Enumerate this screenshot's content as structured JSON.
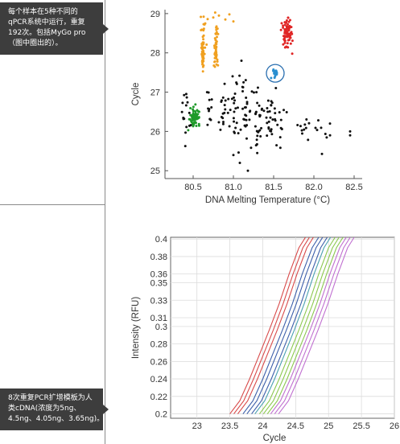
{
  "callouts": {
    "top": [
      "每个样本在5种不同的",
      "qPCR系统中运行，重复",
      "192次。包括MyGo pro",
      "（图中圈出的）。"
    ],
    "bottom": [
      "8次重复PCR扩增模板为人",
      "类cDNA(浓度为5ng、",
      "4.5ng、4.05ng、3.65ng)。"
    ]
  },
  "chart_data": [
    {
      "type": "scatter",
      "xlabel": "DNA Melting Temperature (°C)",
      "ylabel": "Cycle",
      "xlim": [
        80.15,
        82.6
      ],
      "ylim": [
        24.8,
        29.1
      ],
      "xticks": [
        "80.5",
        "81.0",
        "81.5",
        "82.0",
        "82.5"
      ],
      "yticks": [
        "25",
        "26",
        "27",
        "28",
        "29"
      ],
      "series": [
        {
          "color": "#f0a020",
          "clusters": [
            {
              "cx": 80.62,
              "cy": 28.1,
              "sx": 0.012,
              "sy": 0.28,
              "n": 55
            },
            {
              "cx": 80.78,
              "cy": 28.1,
              "sx": 0.012,
              "sy": 0.28,
              "n": 55
            }
          ],
          "points": [
            [
              80.65,
              28.75
            ],
            [
              80.68,
              28.86
            ],
            [
              80.75,
              28.9
            ],
            [
              80.82,
              28.95
            ],
            [
              80.9,
              28.85
            ],
            [
              81.0,
              28.8
            ],
            [
              80.95,
              28.98
            ],
            [
              80.63,
              28.92
            ]
          ]
        },
        {
          "color": "#e02424",
          "clusters": [
            {
              "cx": 81.67,
              "cy": 28.5,
              "sx": 0.035,
              "sy": 0.22,
              "n": 75
            }
          ],
          "points": []
        },
        {
          "color": "#1f9a2a",
          "clusters": [
            {
              "cx": 80.52,
              "cy": 26.38,
              "sx": 0.03,
              "sy": 0.1,
              "n": 65
            }
          ],
          "points": []
        },
        {
          "color": "#2a8fd0",
          "clusters": [
            {
              "cx": 81.52,
              "cy": 27.48,
              "sx": 0.012,
              "sy": 0.05,
              "n": 28
            }
          ],
          "points": []
        },
        {
          "color": "#111111",
          "clusters": [
            {
              "cx": 80.42,
              "cy": 26.55,
              "sx": 0.03,
              "sy": 0.35,
              "n": 16
            },
            {
              "cx": 80.7,
              "cy": 26.5,
              "sx": 0.03,
              "sy": 0.25,
              "n": 12
            },
            {
              "cx": 80.86,
              "cy": 26.6,
              "sx": 0.04,
              "sy": 0.35,
              "n": 16
            },
            {
              "cx": 81.02,
              "cy": 26.5,
              "sx": 0.04,
              "sy": 0.45,
              "n": 22
            },
            {
              "cx": 81.15,
              "cy": 26.4,
              "sx": 0.04,
              "sy": 0.45,
              "n": 26
            },
            {
              "cx": 81.3,
              "cy": 26.3,
              "sx": 0.04,
              "sy": 0.45,
              "n": 28
            },
            {
              "cx": 81.45,
              "cy": 26.3,
              "sx": 0.04,
              "sy": 0.45,
              "n": 22
            },
            {
              "cx": 81.58,
              "cy": 26.3,
              "sx": 0.04,
              "sy": 0.35,
              "n": 14
            },
            {
              "cx": 81.9,
              "cy": 26.0,
              "sx": 0.06,
              "sy": 0.2,
              "n": 10
            },
            {
              "cx": 82.1,
              "cy": 26.0,
              "sx": 0.05,
              "sy": 0.18,
              "n": 8
            }
          ],
          "points": [
            [
              82.45,
              26.0
            ],
            [
              82.45,
              25.9
            ],
            [
              81.08,
              25.2
            ],
            [
              81.18,
              25.0
            ],
            [
              81.0,
              25.4
            ],
            [
              81.1,
              27.8
            ],
            [
              82.2,
              26.2
            ]
          ]
        }
      ],
      "highlight_circle": {
        "x": 81.52,
        "y": 27.48,
        "color": "#2a6fb0"
      }
    },
    {
      "type": "line",
      "xlabel": "Cycle",
      "ylabel": "Intensity (RFU)",
      "xlim": [
        22.6,
        26.0
      ],
      "ylim": [
        0.195,
        0.402
      ],
      "xticks": [
        "23",
        "23.5",
        "24",
        "24.5",
        "25",
        "25.5",
        "26"
      ],
      "yticks": [
        "0.2",
        "0.22",
        "0.24",
        "0.26",
        "0.28",
        "0.3",
        "0.31",
        "0.33",
        "0.35",
        "0.36",
        "0.38",
        "0.4"
      ],
      "curve_shape": [
        [
          0.0,
          0.2
        ],
        [
          0.15,
          0.215
        ],
        [
          0.3,
          0.24
        ],
        [
          0.45,
          0.268
        ],
        [
          0.6,
          0.296
        ],
        [
          0.75,
          0.326
        ],
        [
          0.9,
          0.36
        ],
        [
          1.05,
          0.39
        ],
        [
          1.15,
          0.402
        ]
      ],
      "series": [
        {
          "color": "#d84a4a",
          "shifts": [
            23.5,
            23.56,
            23.62
          ]
        },
        {
          "color": "#3d5faa",
          "shifts": [
            23.7,
            23.76,
            23.83
          ]
        },
        {
          "color": "#4aa0b0",
          "shifts": [
            23.88
          ]
        },
        {
          "color": "#8cc850",
          "shifts": [
            23.95,
            24.01,
            24.07
          ]
        },
        {
          "color": "#c070d0",
          "shifts": [
            24.12,
            24.18,
            24.24
          ]
        }
      ]
    }
  ]
}
